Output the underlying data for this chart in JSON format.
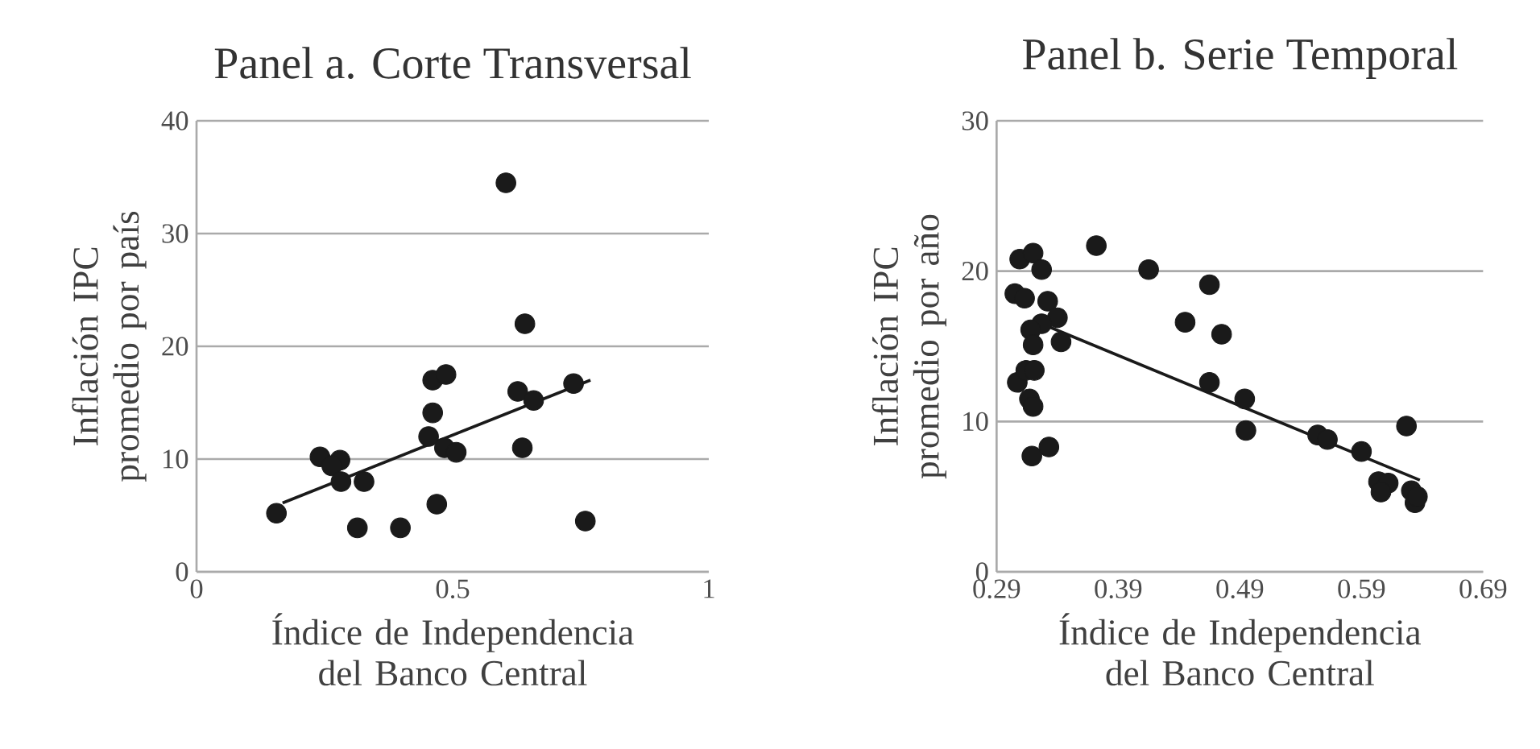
{
  "chart_data": [
    {
      "type": "scatter",
      "title": "Panel a. Corte Transversal",
      "xlabel": "Índice de Independencia del Banco Central",
      "ylabel": "Inflación IPC promedio por país",
      "xlim": [
        0,
        1
      ],
      "ylim": [
        0,
        40
      ],
      "xticks": [
        0,
        0.5,
        1
      ],
      "yticks": [
        0,
        10,
        20,
        30,
        40
      ],
      "grid": "y",
      "marker": "circle",
      "series": [
        {
          "type": "scatter",
          "color": "#1a1a1a",
          "x": [
            0.156,
            0.241,
            0.28,
            0.264,
            0.282,
            0.327,
            0.314,
            0.398,
            0.469,
            0.453,
            0.461,
            0.461,
            0.487,
            0.484,
            0.507,
            0.604,
            0.641,
            0.627,
            0.658,
            0.636,
            0.736,
            0.759
          ],
          "values": [
            5.2,
            10.2,
            9.9,
            9.4,
            8.0,
            8.0,
            3.9,
            3.9,
            6.0,
            12.0,
            14.1,
            17.0,
            17.5,
            11.0,
            10.6,
            34.5,
            22.0,
            16.0,
            15.2,
            11.0,
            16.7,
            4.5
          ]
        },
        {
          "type": "line",
          "color": "#1a1a1a",
          "marker": "none",
          "x": [
            0.168,
            0.769
          ],
          "values": [
            6.1,
            17.0
          ]
        }
      ]
    },
    {
      "type": "scatter",
      "title": "Panel b. Serie Temporal",
      "xlabel": "Índice de Independencia del Banco Central",
      "ylabel": "Inflación IPC promedio por año",
      "xlim": [
        0.29,
        0.69
      ],
      "ylim": [
        0,
        30
      ],
      "xticks": [
        0.29,
        0.39,
        0.49,
        0.59,
        0.69
      ],
      "yticks": [
        0,
        10,
        20,
        30
      ],
      "grid": "y",
      "marker": "circle",
      "series": [
        {
          "type": "scatter",
          "color": "#1a1a1a",
          "x": [
            0.309,
            0.32,
            0.327,
            0.305,
            0.313,
            0.332,
            0.34,
            0.327,
            0.318,
            0.32,
            0.343,
            0.307,
            0.314,
            0.321,
            0.317,
            0.32,
            0.319,
            0.333,
            0.372,
            0.415,
            0.465,
            0.445,
            0.475,
            0.465,
            0.494,
            0.495,
            0.554,
            0.562,
            0.59,
            0.627,
            0.604,
            0.612,
            0.606,
            0.631,
            0.634,
            0.636
          ],
          "values": [
            20.8,
            21.2,
            20.1,
            18.5,
            18.2,
            18.0,
            16.9,
            16.5,
            16.1,
            15.1,
            15.3,
            12.6,
            13.4,
            13.4,
            11.5,
            11.0,
            7.7,
            8.3,
            21.7,
            20.1,
            19.1,
            16.6,
            15.8,
            12.6,
            11.5,
            9.4,
            9.1,
            8.8,
            8.0,
            9.7,
            6.0,
            5.9,
            5.3,
            5.4,
            4.6,
            5.0
          ]
        },
        {
          "type": "line",
          "color": "#1a1a1a",
          "marker": "none",
          "x": [
            0.333,
            0.638
          ],
          "values": [
            16.3,
            6.1
          ]
        }
      ]
    }
  ]
}
